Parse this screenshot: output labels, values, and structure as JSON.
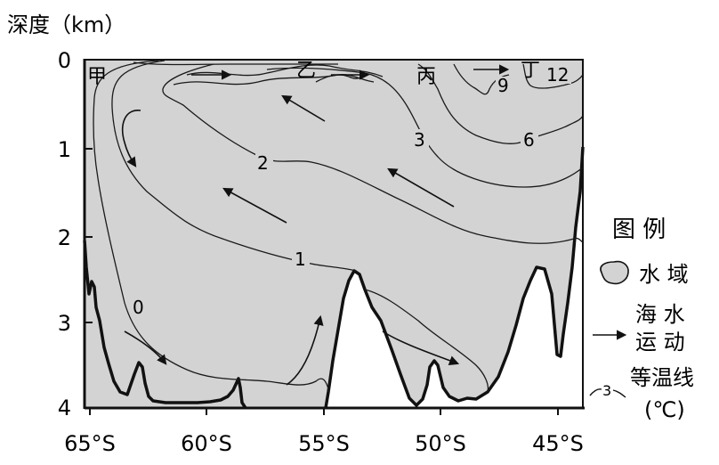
{
  "yaxis": {
    "title": "深度（km）",
    "ticks": [
      "0",
      "1",
      "2",
      "3",
      "4"
    ]
  },
  "xaxis": {
    "ticks": [
      "65°S",
      "60°S",
      "55°S",
      "50°S",
      "45°S"
    ]
  },
  "locations": {
    "jia": "甲",
    "yi": "乙",
    "bing": "丙",
    "ding": "丁"
  },
  "isotherm_labels": [
    "0",
    "1",
    "2",
    "3",
    "6",
    "9",
    "12"
  ],
  "legend": {
    "title": "图 例",
    "water_label": "水 域",
    "motion_label_line1": "海 水",
    "motion_label_line2": "运 动",
    "isotherm_label_line1": "等温线",
    "isotherm_label_line2": "(℃)",
    "isotherm_sample": "3"
  },
  "colors": {
    "water": "#d3d3d3",
    "line": "#1a1a1a"
  }
}
